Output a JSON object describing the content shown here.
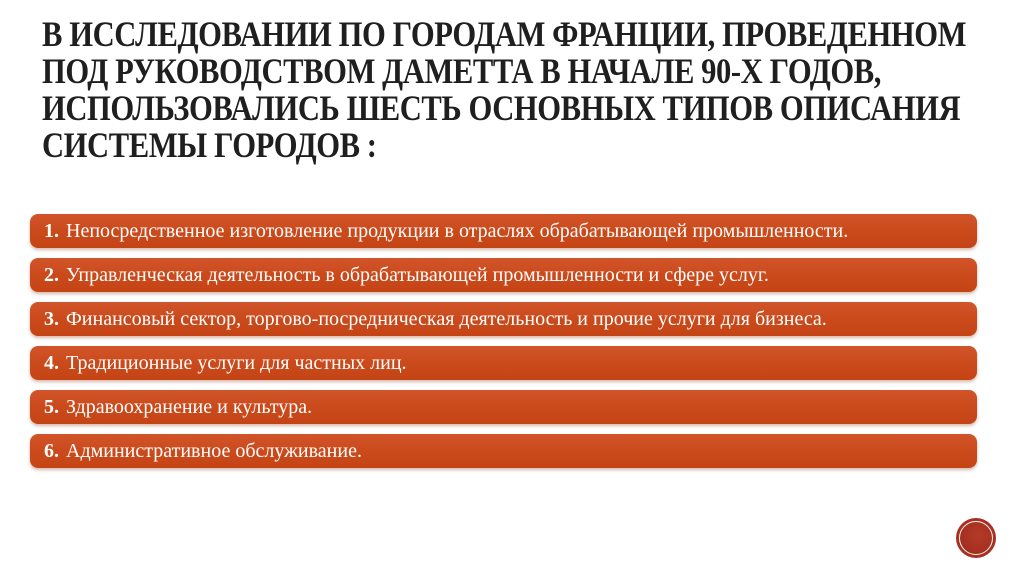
{
  "slide": {
    "background_color": "#ffffff",
    "title": {
      "color": "#1f1f1f",
      "lines": [
        "В ИССЛЕДОВАНИИ ПО ГОРОДАМ ФРАНЦИИ, ПРОВЕДЕННОМ",
        "ПОД РУКОВОДСТВОМ ДАМЕТТА В НАЧАЛЕ 90-Х ГОДОВ,",
        "ИСПОЛЬЗОВАЛИСЬ ШЕСТЬ ОСНОВНЫХ ТИПОВ ОПИСАНИЯ",
        "СИСТЕМЫ ГОРОДОВ :"
      ]
    },
    "list": {
      "bar_color": "#cb4b1d",
      "text_color": "#ffffff",
      "items": [
        {
          "number": "1.",
          "text": "Непосредственное изготовление продукции в отраслях обрабатывающей промышленности."
        },
        {
          "number": "2.",
          "text": "Управленческая деятельность в обрабатывающей промышленности и сфере услуг."
        },
        {
          "number": "3.",
          "text": "Финансовый сектор, торгово-посредническая деятельность и прочие услуги для бизнеса."
        },
        {
          "number": "4.",
          "text": "Традиционные услуги для частных лиц."
        },
        {
          "number": "5.",
          "text": "Здравоохранение и культура."
        },
        {
          "number": "6.",
          "text": "Административное обслуживание."
        }
      ]
    },
    "stamp": {
      "fill_color": "#a93122",
      "ring_color": "#ffffff"
    }
  }
}
